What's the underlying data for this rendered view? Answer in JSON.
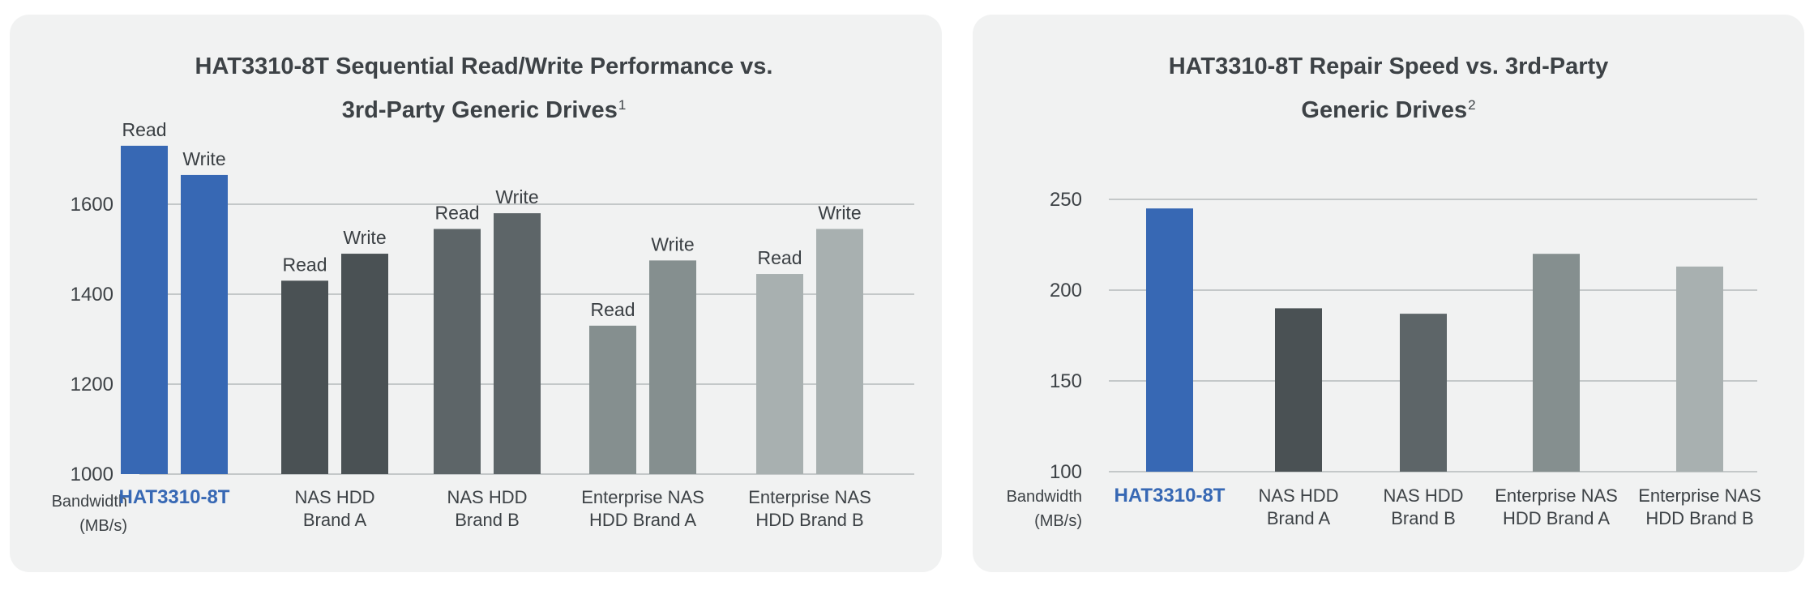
{
  "chart_data": [
    {
      "type": "bar",
      "title": "HAT3310-8T Sequential Read/Write Performance vs. 3rd-Party Generic Drives",
      "title_line1": "HAT3310-8T Sequential Read/Write Performance vs.",
      "title_line2": "3rd-Party Generic Drives",
      "title_footnote": "1",
      "ylabel_line1": "Bandwidth",
      "ylabel_line2": "(MB/s)",
      "ylim": [
        1000,
        1800
      ],
      "yticks": [
        "1000",
        "1200",
        "1400",
        "1600"
      ],
      "grid": true,
      "categories": [
        {
          "line1": "HAT3310-8T",
          "line2": "",
          "highlight": true
        },
        {
          "line1": "NAS HDD",
          "line2": "Brand A",
          "highlight": false
        },
        {
          "line1": "NAS HDD",
          "line2": "Brand B",
          "highlight": false
        },
        {
          "line1": "Enterprise NAS",
          "line2": "HDD Brand A",
          "highlight": false
        },
        {
          "line1": "Enterprise NAS",
          "line2": "HDD Brand B",
          "highlight": false
        }
      ],
      "series": [
        {
          "name": "Read",
          "values": [
            1730,
            1430,
            1545,
            1330,
            1445
          ]
        },
        {
          "name": "Write",
          "values": [
            1665,
            1490,
            1580,
            1475,
            1545
          ]
        }
      ],
      "bar_labels": [
        "Read",
        "Write"
      ],
      "colors": [
        "#3768b4",
        "#4a5154",
        "#5d6568",
        "#858f8f",
        "#a8b0b0"
      ]
    },
    {
      "type": "bar",
      "title": "HAT3310-8T Repair Speed vs. 3rd-Party Generic Drives",
      "title_line1": "HAT3310-8T Repair Speed vs. 3rd-Party",
      "title_line2": "Generic Drives",
      "title_footnote": "2",
      "ylabel_line1": "Bandwidth",
      "ylabel_line2": "(MB/s)",
      "ylim": [
        100,
        260
      ],
      "yticks": [
        "100",
        "150",
        "200",
        "250"
      ],
      "grid": true,
      "categories": [
        {
          "line1": "HAT3310-8T",
          "line2": "",
          "highlight": true
        },
        {
          "line1": "NAS HDD",
          "line2": "Brand A",
          "highlight": false
        },
        {
          "line1": "NAS HDD",
          "line2": "Brand B",
          "highlight": false
        },
        {
          "line1": "Enterprise NAS",
          "line2": "HDD Brand A",
          "highlight": false
        },
        {
          "line1": "Enterprise NAS",
          "line2": "HDD Brand B",
          "highlight": false
        }
      ],
      "values": [
        245,
        190,
        187,
        220,
        213
      ],
      "colors": [
        "#3768b4",
        "#4a5154",
        "#5d6568",
        "#858f8f",
        "#a8b0b0"
      ]
    }
  ]
}
